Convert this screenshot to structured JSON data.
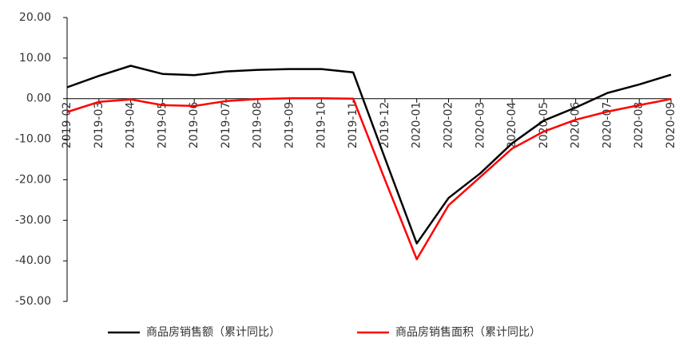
{
  "chart_data": {
    "type": "line",
    "categories": [
      "2019-02",
      "2019-03",
      "2019-04",
      "2019-05",
      "2019-06",
      "2019-07",
      "2019-08",
      "2019-09",
      "2019-10",
      "2019-11",
      "2019-12",
      "2020-01",
      "2020-02",
      "2020-03",
      "2020-04",
      "2020-05",
      "2020-06",
      "2020-07",
      "2020-08",
      "2020-09"
    ],
    "series": [
      {
        "name": "商品房销售额（累计同比）",
        "color": "#000000",
        "values": [
          2.8,
          5.6,
          8.1,
          6.1,
          5.8,
          6.7,
          7.1,
          7.3,
          7.3,
          6.5,
          -14.7,
          -35.7,
          -24.5,
          -18.4,
          -11.0,
          -5.4,
          -2.2,
          1.4,
          3.5,
          5.9
        ]
      },
      {
        "name": "商品房销售面积（累计同比）",
        "color": "#ff0000",
        "values": [
          -3.3,
          -0.8,
          -0.2,
          -1.6,
          -1.8,
          -0.6,
          -0.1,
          0.1,
          0.1,
          0.0,
          -20.0,
          -39.6,
          -26.3,
          -19.3,
          -12.3,
          -8.1,
          -5.2,
          -3.2,
          -1.6,
          -0.1
        ]
      }
    ],
    "ylim": [
      -50,
      20
    ],
    "yticks": [
      {
        "value": -50,
        "label": "-50.00"
      },
      {
        "value": -40,
        "label": "-40.00"
      },
      {
        "value": -30,
        "label": "-30.00"
      },
      {
        "value": -20,
        "label": "-20.00"
      },
      {
        "value": -10,
        "label": "-10.00"
      },
      {
        "value": 0,
        "label": "0.00"
      },
      {
        "value": 10,
        "label": "10.00"
      },
      {
        "value": 20,
        "label": "20.00"
      }
    ],
    "grid": false,
    "legend": "bottom"
  }
}
